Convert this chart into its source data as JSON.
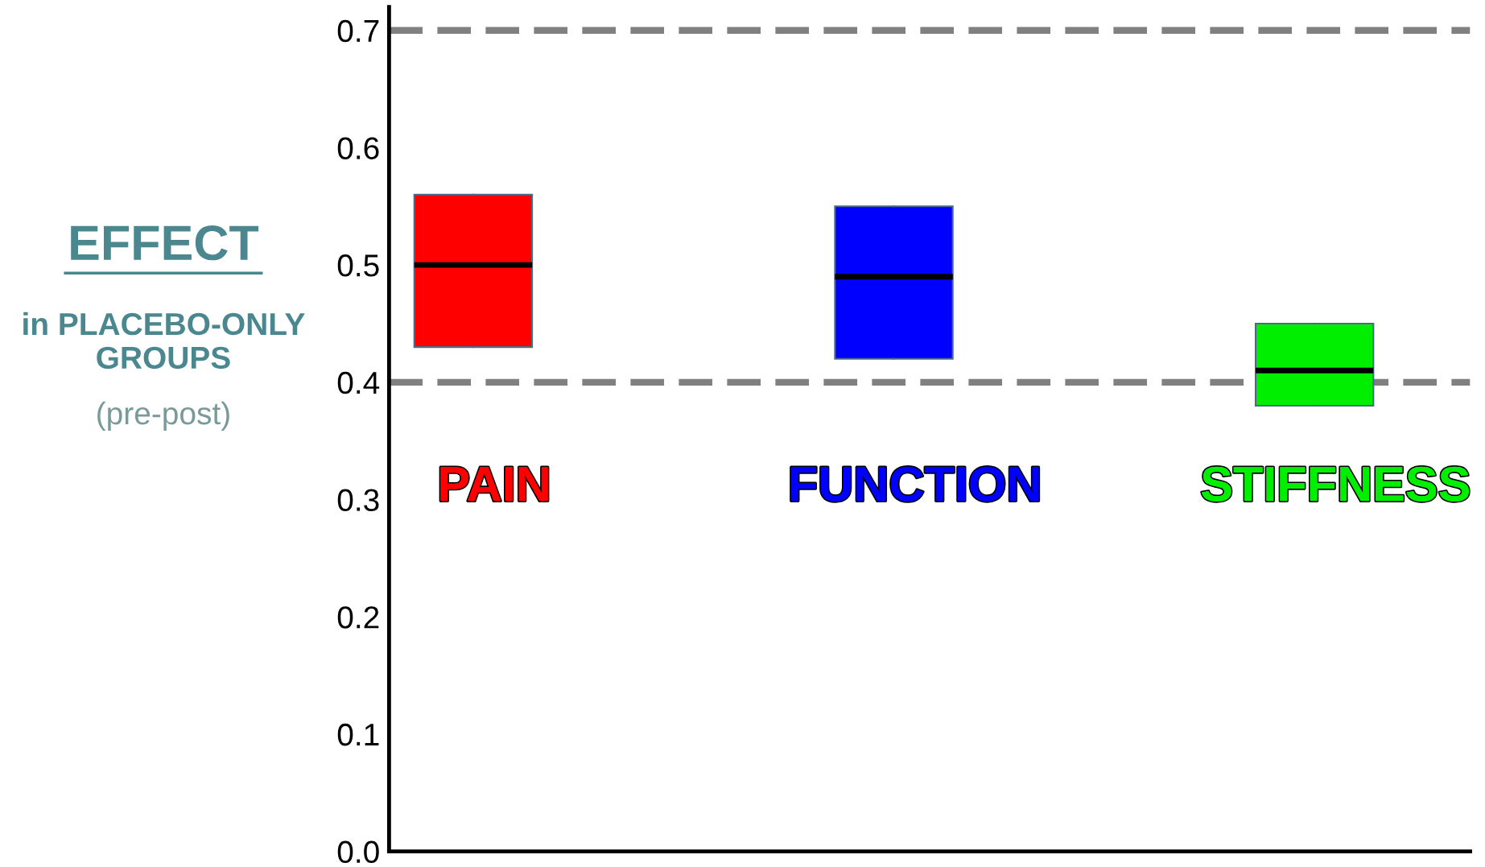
{
  "chart_data": {
    "type": "box",
    "ylabel": "EFFECT",
    "annotations": [
      "in PLACEBO-ONLY GROUPS",
      "(pre-post)"
    ],
    "categories": [
      "PAIN",
      "FUNCTION",
      "STIFFNESS"
    ],
    "colors": [
      "#ff0000",
      "#0000ff",
      "#00ee00"
    ],
    "boxes": [
      {
        "low": 0.43,
        "q1": 0.43,
        "median": 0.5,
        "q3": 0.56,
        "high": 0.56
      },
      {
        "low": 0.42,
        "q1": 0.42,
        "median": 0.49,
        "q3": 0.55,
        "high": 0.55
      },
      {
        "low": 0.38,
        "q1": 0.38,
        "median": 0.41,
        "q3": 0.45,
        "high": 0.45
      }
    ],
    "ylim": [
      0,
      0.72
    ],
    "yticks": [
      {
        "value": 0,
        "label": "0.0"
      },
      0.1,
      0.2,
      0.3,
      0.4,
      0.5,
      0.6,
      0.7
    ],
    "ref_lines": [
      {
        "axis": "y",
        "value": 0.7,
        "color": "#808080",
        "line_style": "dashed"
      },
      {
        "axis": "y",
        "value": 0.4,
        "color": "#808080",
        "line_style": "dashed"
      }
    ],
    "grid": false,
    "legend": false
  }
}
